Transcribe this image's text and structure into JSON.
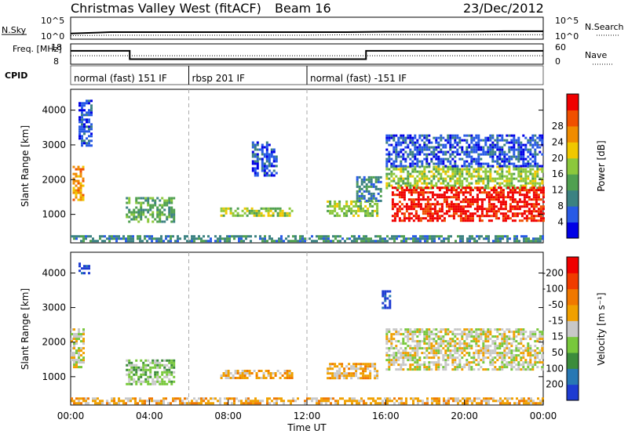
{
  "header": {
    "station": "Christmas Valley West (fitACF)",
    "beam": "Beam 16",
    "date": "23/Dec/2012"
  },
  "chart_data": [
    {
      "type": "line",
      "name": "nsky-nsearch",
      "ylabel_left": "N.Sky",
      "ylabel_right": "N.Search",
      "left_ticks": [
        "10^5",
        "10^0"
      ],
      "right_ticks": [
        "10^5",
        "10^0"
      ],
      "x": [
        "00:00",
        "02:00",
        "04:00",
        "06:00",
        "08:00",
        "10:00",
        "12:00",
        "14:00",
        "16:00",
        "18:00",
        "20:00",
        "22:00",
        "24:00"
      ],
      "series": [
        {
          "values": [
            1.3,
            1.6,
            1.6,
            1.6,
            1.6,
            1.6,
            1.6,
            1.6,
            1.7,
            1.7,
            1.7,
            1.8,
            1.8
          ]
        },
        {
          "values": [
            0.8,
            0.9,
            0.9,
            0.9,
            0.9,
            0.9,
            0.9,
            1.0,
            1.0,
            1.0,
            1.0,
            1.0,
            1.0
          ]
        }
      ]
    },
    {
      "type": "line",
      "name": "freq-nave",
      "ylabel_left": "Freq. [MHz]",
      "ylabel_right": "Nave",
      "left_ticks": [
        "18",
        "8"
      ],
      "right_ticks": [
        "60",
        "0"
      ],
      "segments": [
        {
          "start": "00:00",
          "end": "03:00",
          "freq_mhz": 14.6
        },
        {
          "start": "03:00",
          "end": "15:00",
          "freq_mhz": 10.5
        },
        {
          "start": "15:00",
          "end": "24:00",
          "freq_mhz": 14.6
        }
      ],
      "nave": 25
    },
    {
      "type": "table",
      "name": "cpid",
      "label": "CPID",
      "modes": [
        {
          "start": "00:00",
          "end": "06:00",
          "text": "normal (fast) 151 IF"
        },
        {
          "start": "06:00",
          "end": "12:00",
          "text": "rbsp 201 IF"
        },
        {
          "start": "12:00",
          "end": "24:00",
          "text": "normal (fast) -151 IF"
        }
      ]
    },
    {
      "type": "heatmap",
      "name": "power",
      "ylabel": "Slant Range [km]",
      "yticks": [
        1000,
        2000,
        3000,
        4000
      ],
      "ylim": [
        180,
        4600
      ],
      "xlim": [
        "00:00",
        "24:00"
      ],
      "colorbar_label": "Power [dB]",
      "colorbar_ticks": [
        4,
        8,
        12,
        16,
        20,
        24,
        28
      ],
      "colorbar_colors": [
        "#0000e6",
        "#285ae6",
        "#3c8282",
        "#50a050",
        "#8cc83c",
        "#f0c800",
        "#f08c00",
        "#f05000",
        "#f00000"
      ],
      "regions": [
        {
          "t0": 0.1,
          "t1": 0.6,
          "r0": 1400,
          "r1": 2400,
          "level": 6
        },
        {
          "t0": 0.4,
          "t1": 1.0,
          "r0": 3000,
          "r1": 4300,
          "level": 1
        },
        {
          "t0": 2.8,
          "t1": 5.2,
          "r0": 800,
          "r1": 1500,
          "level": 3
        },
        {
          "t0": 7.6,
          "t1": 11.2,
          "r0": 950,
          "r1": 1200,
          "level": 4
        },
        {
          "t0": 9.2,
          "t1": 10.4,
          "r0": 2100,
          "r1": 3100,
          "level": 1
        },
        {
          "t0": 13.0,
          "t1": 15.6,
          "r0": 950,
          "r1": 1400,
          "level": 4
        },
        {
          "t0": 14.5,
          "t1": 15.8,
          "r0": 1400,
          "r1": 2100,
          "level": 2
        },
        {
          "t0": 16.0,
          "t1": 24.0,
          "r0": 1750,
          "r1": 2400,
          "level": 4
        },
        {
          "t0": 16.3,
          "t1": 24.0,
          "r0": 800,
          "r1": 1800,
          "level": 8
        },
        {
          "t0": 16.0,
          "t1": 24.0,
          "r0": 2400,
          "r1": 3300,
          "level": 1
        },
        {
          "t0": 0.0,
          "t1": 24.0,
          "r0": 200,
          "r1": 400,
          "level": 2
        }
      ]
    },
    {
      "type": "heatmap",
      "name": "velocity",
      "ylabel": "Slant Range [km]",
      "yticks": [
        1000,
        2000,
        3000,
        4000
      ],
      "ylim": [
        180,
        4600
      ],
      "xlim": [
        "00:00",
        "24:00"
      ],
      "xlabel": "Time UT",
      "xtick_labels": [
        "00:00",
        "04:00",
        "08:00",
        "12:00",
        "16:00",
        "20:00",
        "00:00"
      ],
      "colorbar_label": "Velocity [m s⁻¹]",
      "colorbar_ticks": [
        200,
        100,
        50,
        15,
        -15,
        -50,
        -100,
        -200
      ],
      "colorbar_colors": [
        "#1e3cd2",
        "#2878b4",
        "#3c8c3c",
        "#78c83c",
        "#c8c8c8",
        "#f0a000",
        "#f07800",
        "#f03c00",
        "#f00000"
      ],
      "regions": [
        {
          "t0": 0.0,
          "t1": 0.6,
          "r0": 1300,
          "r1": 2400,
          "level": 4
        },
        {
          "t0": 0.4,
          "t1": 0.9,
          "r0": 4000,
          "r1": 4300,
          "level": 0
        },
        {
          "t0": 2.8,
          "t1": 5.2,
          "r0": 800,
          "r1": 1500,
          "level": 3
        },
        {
          "t0": 7.6,
          "t1": 11.2,
          "r0": 950,
          "r1": 1200,
          "level": 5
        },
        {
          "t0": 13.0,
          "t1": 15.6,
          "r0": 950,
          "r1": 1400,
          "level": 5
        },
        {
          "t0": 15.8,
          "t1": 16.2,
          "r0": 3000,
          "r1": 3500,
          "level": 0
        },
        {
          "t0": 16.0,
          "t1": 24.0,
          "r0": 1200,
          "r1": 2400,
          "level": 4
        },
        {
          "t0": 0.0,
          "t1": 24.0,
          "r0": 200,
          "r1": 400,
          "level": 5
        }
      ]
    }
  ]
}
